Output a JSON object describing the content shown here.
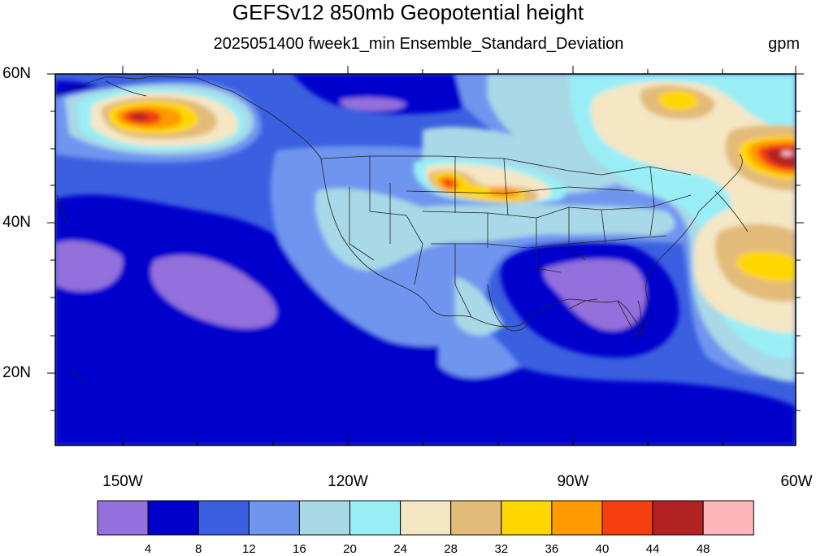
{
  "title": "GEFSv12 850mb Geopotential height",
  "subtitle": "2025051400 fweek1_min Ensemble_Standard_Deviation",
  "units": "gpm",
  "lat_labels": [
    "60N",
    "40N",
    "20N"
  ],
  "lon_labels": [
    "150W",
    "120W",
    "90W",
    "60W"
  ],
  "colorbar": {
    "labels": [
      "4",
      "8",
      "12",
      "16",
      "20",
      "24",
      "28",
      "32",
      "36",
      "40",
      "44",
      "48"
    ],
    "colors": [
      "#9370db",
      "#0000cd",
      "#3a5fe0",
      "#6f95ef",
      "#a9d8e6",
      "#99eef6",
      "#f5e6c4",
      "#e3bb79",
      "#ffd700",
      "#ff9a00",
      "#f43f0f",
      "#b22222",
      "#ffb6b9"
    ]
  }
}
